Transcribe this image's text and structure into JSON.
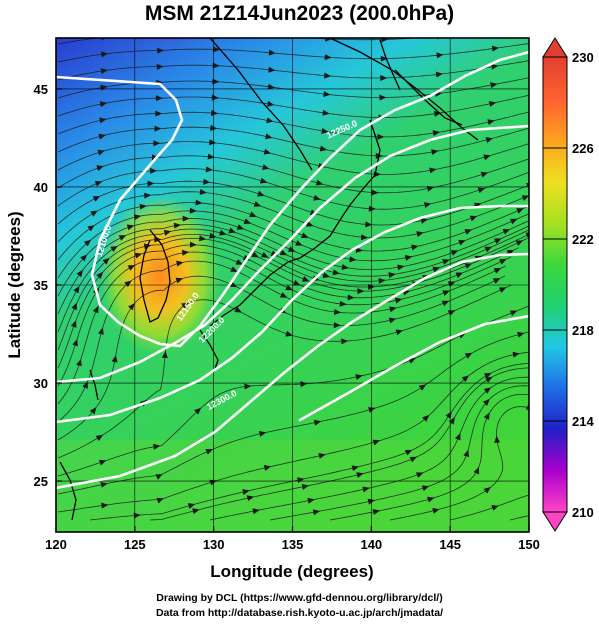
{
  "title": "MSM 21Z14Jun2023 (200.0hPa)",
  "credits": {
    "line1": "Drawing by DCL (https://www.gfd-dennou.org/library/dcl/)",
    "line2": "Data from http://database.rish.kyoto-u.ac.jp/arch/jmadata/"
  },
  "axes": {
    "xlabel": "Longitude (degrees)",
    "ylabel": "Latitude  (degrees)",
    "xlim": [
      120,
      150
    ],
    "ylim": [
      22.4,
      47.6
    ],
    "xticks": [
      120,
      125,
      130,
      135,
      140,
      145,
      150
    ],
    "yticks": [
      25,
      30,
      35,
      40,
      45
    ]
  },
  "colorbar": {
    "min": 210,
    "max": 230,
    "ticks": [
      210,
      214,
      218,
      222,
      226,
      230
    ],
    "colors": [
      "#ff44c8",
      "#aa00cc",
      "#2020c8",
      "#1f6fe6",
      "#22c8e6",
      "#20d070",
      "#3cd83c",
      "#a8e020",
      "#eee020",
      "#ffa020",
      "#ff6030",
      "#e04030"
    ]
  },
  "contours": {
    "color": "#ffffff",
    "labels": [
      {
        "text": "12100.0",
        "lon": 123.2,
        "lat": 37.2,
        "rot": -72
      },
      {
        "text": "12150.0",
        "lon": 128.5,
        "lat": 33.8,
        "rot": -55
      },
      {
        "text": "12200.0",
        "lon": 130.0,
        "lat": 32.6,
        "rot": -45
      },
      {
        "text": "12250.0",
        "lon": 138.2,
        "lat": 42.8,
        "rot": -24
      },
      {
        "text": "12300.0",
        "lon": 130.6,
        "lat": 29.0,
        "rot": -28
      }
    ]
  }
}
